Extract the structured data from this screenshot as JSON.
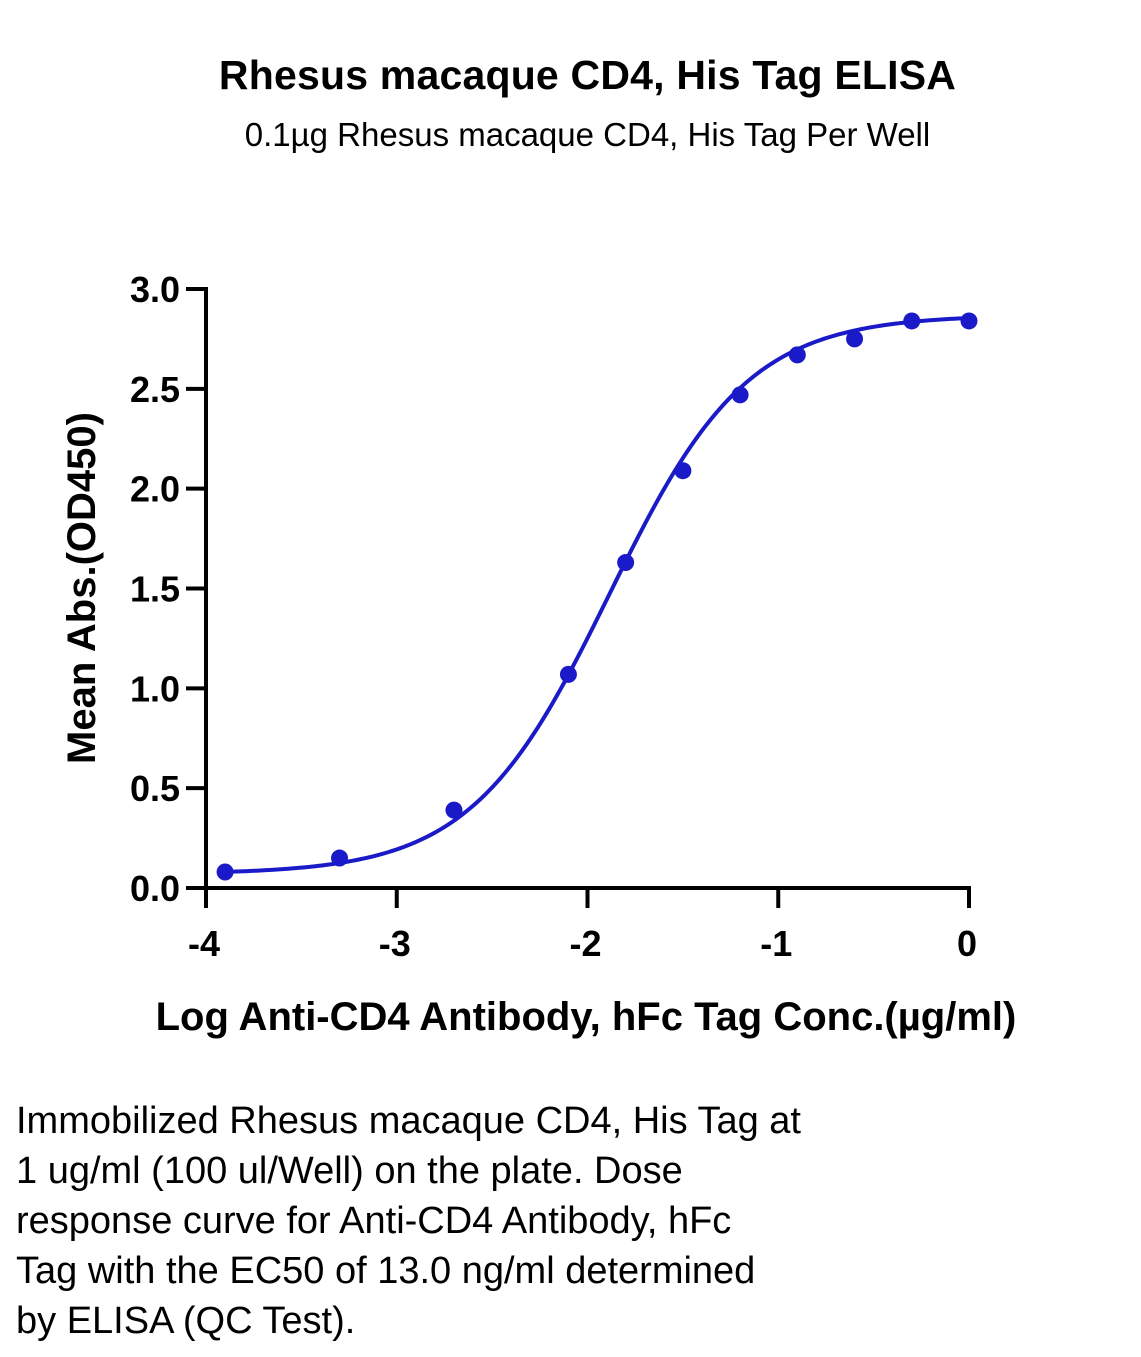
{
  "chart_data": {
    "type": "scatter",
    "title": "Rhesus macaque CD4, His Tag ELISA",
    "subtitle": "0.1µg Rhesus macaque CD4, His Tag Per Well",
    "xlabel": "Log Anti-CD4 Antibody, hFc Tag Conc.(µg/ml)",
    "ylabel": "Mean Abs.(OD450)",
    "xlim": [
      -4,
      0
    ],
    "ylim": [
      0,
      3.0
    ],
    "x_ticks": [
      "-4",
      "-3",
      "-2",
      "-1",
      "0"
    ],
    "y_ticks": [
      "0.0",
      "0.5",
      "1.0",
      "1.5",
      "2.0",
      "2.5",
      "3.0"
    ],
    "grid": false,
    "marker_color": "#1a1ac8",
    "curve_color": "#1a1ac8",
    "series": [
      {
        "x": [
          -3.9,
          -3.3,
          -2.7,
          -2.1,
          -1.8,
          -1.5,
          -1.2,
          -0.9,
          -0.6,
          -0.3,
          0.0
        ],
        "y": [
          0.08,
          0.15,
          0.39,
          1.07,
          1.63,
          2.09,
          2.47,
          2.67,
          2.75,
          2.84,
          2.84
        ]
      }
    ],
    "fit": {
      "model": "4PL",
      "bottom": 0.07,
      "top": 2.87,
      "logEC50": -1.886,
      "hill": 1.2
    }
  },
  "caption_lines": [
    "Immobilized Rhesus macaque CD4, His Tag at",
    "1 ug/ml (100 ul/Well) on the plate. Dose",
    "response curve for Anti-CD4 Antibody, hFc",
    "Tag with the EC50 of 13.0 ng/ml determined",
    "by ELISA (QC Test)."
  ]
}
